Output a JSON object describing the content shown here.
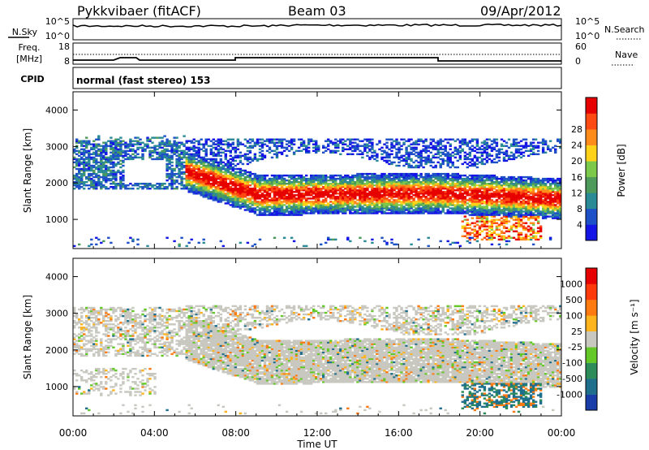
{
  "header": {
    "station": "Pykkvibaer (fitACF)",
    "beam": "Beam 03",
    "date": "09/Apr/2012"
  },
  "strips": {
    "nsky_label": "N.Sky",
    "nsky_ticks": [
      "10^5",
      "10^0"
    ],
    "nsearch_label": "N.Search",
    "nsearch_ticks": [
      "10^5",
      "10^0"
    ],
    "freq_label_1": "Freq.",
    "freq_label_2": "[MHz]",
    "freq_ticks": [
      "18",
      "8"
    ],
    "nave_label": "Nave",
    "nave_ticks": [
      "60",
      "0"
    ],
    "cpid_label": "CPID",
    "cpid_text": "normal (fast stereo) 153"
  },
  "chart_data": [
    {
      "type": "heatmap",
      "name": "power",
      "ylabel": "Slant Range [km]",
      "yticks": [
        "1000",
        "2000",
        "3000",
        "4000"
      ],
      "ylim": [
        200,
        4500
      ],
      "xlim": [
        0,
        24
      ],
      "colorbar": {
        "label": "Power [dB]",
        "ticks": [
          "4",
          "8",
          "12",
          "16",
          "20",
          "24",
          "28"
        ],
        "colors": [
          "#1414e6",
          "#1e50c8",
          "#2a8a96",
          "#4d9a5a",
          "#7cc84a",
          "#ffd21a",
          "#ff8c1a",
          "#ff4a14",
          "#e60000"
        ]
      }
    },
    {
      "type": "heatmap",
      "name": "velocity",
      "ylabel": "Slant Range [km]",
      "yticks": [
        "1000",
        "2000",
        "3000",
        "4000"
      ],
      "ylim": [
        200,
        4500
      ],
      "xlim": [
        0,
        24
      ],
      "colorbar": {
        "label": "Velocity [m s⁻¹]",
        "ticks": [
          "1000",
          "500",
          "100",
          "25",
          "-25",
          "-100",
          "-500",
          "-1000"
        ],
        "colors": [
          "#1a3ca8",
          "#1e6e8c",
          "#2d8c5a",
          "#64c828",
          "#c8c8c0",
          "#ffb41e",
          "#ff7a10",
          "#ff3a0a",
          "#e60000"
        ]
      }
    }
  ],
  "time_axis": {
    "label": "Time UT",
    "ticks": [
      "00:00",
      "04:00",
      "08:00",
      "12:00",
      "16:00",
      "20:00",
      "00:00"
    ]
  }
}
